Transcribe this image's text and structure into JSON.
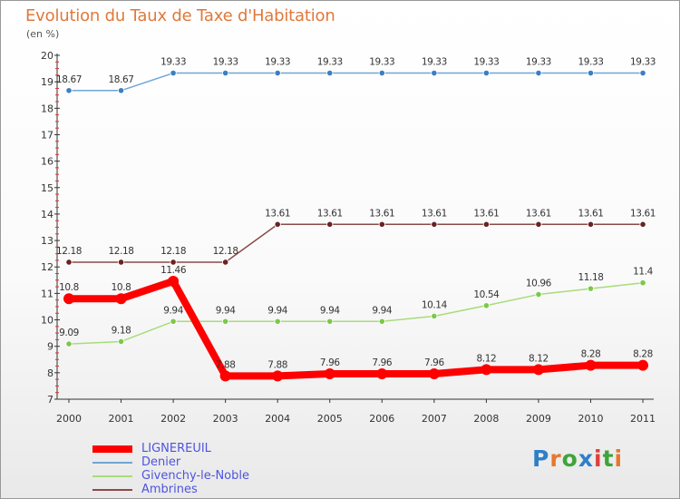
{
  "header": {
    "title": "Evolution du Taux de Taxe d'Habitation",
    "subtitle": "(en %)"
  },
  "logo": {
    "text": "Proxiti",
    "letters": [
      {
        "ch": "P",
        "color": "#2f7fc8"
      },
      {
        "ch": "r",
        "color": "#e8772e"
      },
      {
        "ch": "o",
        "color": "#3fa43a"
      },
      {
        "ch": "x",
        "color": "#2f7fc8"
      },
      {
        "ch": "i",
        "color": "#e0403a"
      },
      {
        "ch": "t",
        "color": "#3fa43a"
      },
      {
        "ch": "i",
        "color": "#e8772e"
      }
    ]
  },
  "chart_data": {
    "type": "line",
    "title": "Evolution du Taux de Taxe d'Habitation",
    "subtitle": "(en %)",
    "xlabel": "",
    "ylabel": "",
    "x": [
      "2000",
      "2001",
      "2002",
      "2003",
      "2004",
      "2005",
      "2006",
      "2007",
      "2008",
      "2009",
      "2010",
      "2011"
    ],
    "ylim": [
      7,
      20
    ],
    "yticks": [
      "7",
      "8",
      "9",
      "10",
      "11",
      "12",
      "13",
      "14",
      "15",
      "16",
      "17",
      "18",
      "19",
      "20"
    ],
    "grid": false,
    "legend_position": "bottom-left",
    "series": [
      {
        "name": "LIGNEREUIL",
        "color": "#ff0000",
        "style": "thick",
        "values": [
          10.8,
          10.8,
          11.46,
          7.88,
          7.88,
          7.96,
          7.96,
          7.96,
          8.12,
          8.12,
          8.28,
          8.28
        ],
        "labels": [
          "10.8",
          "10.8",
          "11.46",
          "7.88",
          "7.88",
          "7.96",
          "7.96",
          "7.96",
          "8.12",
          "8.12",
          "8.28",
          "8.28"
        ]
      },
      {
        "name": "Denier",
        "color": "#6fa6d6",
        "marker": "#3a7fc4",
        "style": "thin",
        "values": [
          18.67,
          18.67,
          19.33,
          19.33,
          19.33,
          19.33,
          19.33,
          19.33,
          19.33,
          19.33,
          19.33,
          19.33
        ],
        "labels": [
          "18.67",
          "18.67",
          "19.33",
          "19.33",
          "19.33",
          "19.33",
          "19.33",
          "19.33",
          "19.33",
          "19.33",
          "19.33",
          "19.33"
        ]
      },
      {
        "name": "Givenchy-le-Noble",
        "color": "#a8dc7a",
        "marker": "#7cc84a",
        "style": "thin",
        "values": [
          9.09,
          9.18,
          9.94,
          9.94,
          9.94,
          9.94,
          9.94,
          10.14,
          10.54,
          10.96,
          11.18,
          11.4
        ],
        "labels": [
          "9.09",
          "9.18",
          "9.94",
          "9.94",
          "9.94",
          "9.94",
          "9.94",
          "10.14",
          "10.54",
          "10.96",
          "11.18",
          "11.4"
        ]
      },
      {
        "name": "Ambrines",
        "color": "#8a4a4a",
        "marker": "#6a2222",
        "style": "thin",
        "values": [
          12.18,
          12.18,
          12.18,
          12.18,
          13.61,
          13.61,
          13.61,
          13.61,
          13.61,
          13.61,
          13.61,
          13.61
        ],
        "labels": [
          "12.18",
          "12.18",
          "12.18",
          "12.18",
          "13.61",
          "13.61",
          "13.61",
          "13.61",
          "13.61",
          "13.61",
          "13.61",
          "13.61"
        ]
      }
    ]
  }
}
